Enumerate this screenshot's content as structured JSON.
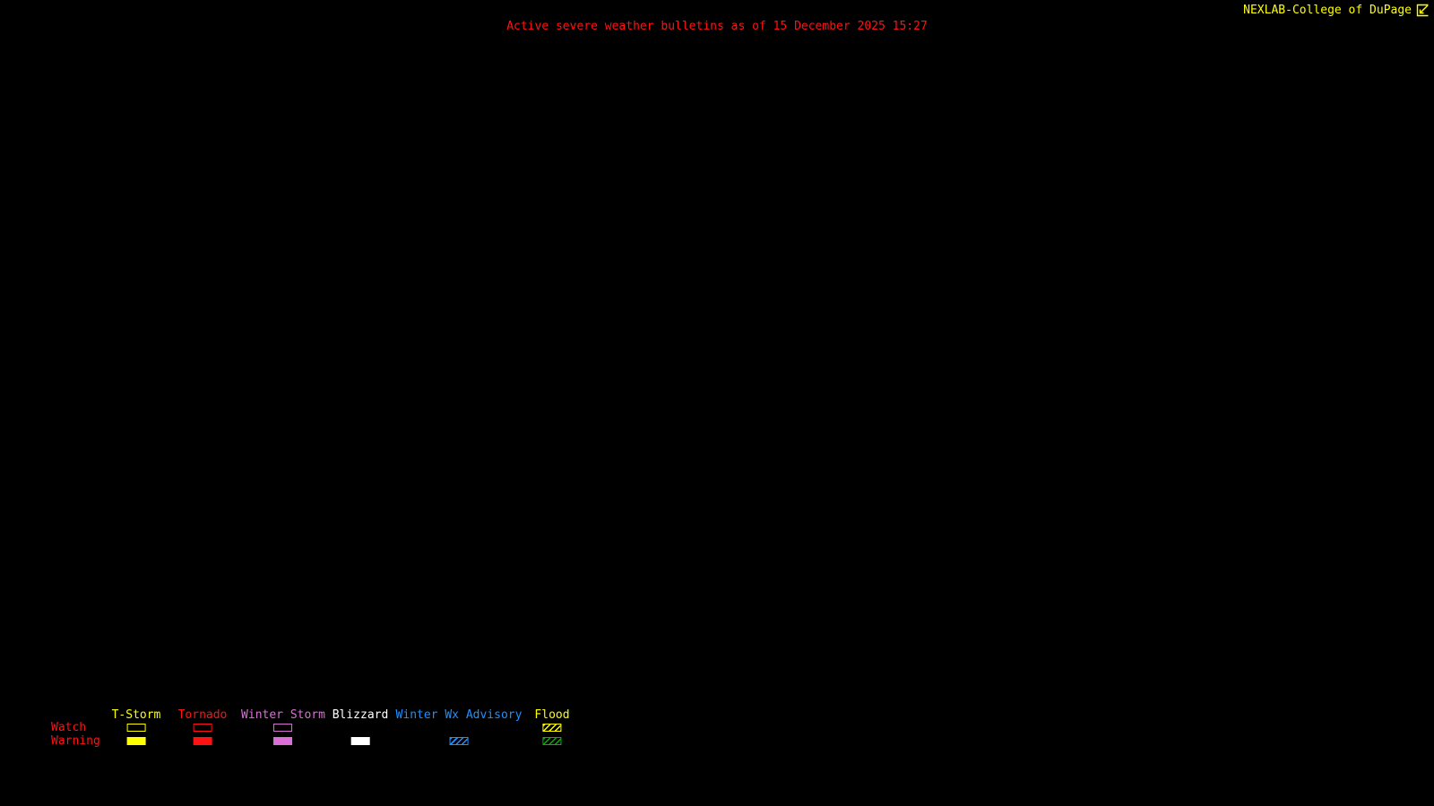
{
  "header": {
    "title": "Active severe weather bulletins as of 15 December 2025 15:27",
    "title_color": "#ff1212",
    "brand": "NEXLAB-College of DuPage",
    "brand_color": "#ffff00",
    "logo_icon": "nexlab-box-bolt-icon"
  },
  "map": {
    "background_color": "#000000",
    "active_bulletin_shapes": []
  },
  "legend": {
    "row_label_color": "#ff1212",
    "rows": [
      {
        "label": "Watch"
      },
      {
        "label": "Warning"
      }
    ],
    "columns": [
      {
        "label": "T-Storm",
        "label_color": "#ffff00",
        "watch": {
          "style": "outline",
          "color": "#ffff00"
        },
        "warning": {
          "style": "fill",
          "color": "#ffff00"
        }
      },
      {
        "label": "Tornado",
        "label_color": "#ff1212",
        "watch": {
          "style": "outline",
          "color": "#ff1212"
        },
        "warning": {
          "style": "fill",
          "color": "#ff1212"
        }
      },
      {
        "label": "Winter Storm",
        "label_color": "#da70d6",
        "watch": {
          "style": "outline",
          "color": "#da70d6"
        },
        "warning": {
          "style": "fill",
          "color": "#da70d6"
        }
      },
      {
        "label": "Blizzard",
        "label_color": "#ffffff",
        "watch": {
          "style": "none",
          "color": "#ffffff"
        },
        "warning": {
          "style": "fill",
          "color": "#ffffff"
        }
      },
      {
        "label": "Winter Wx Advisory",
        "label_color": "#1e90ff",
        "watch": {
          "style": "none",
          "color": "#1e90ff"
        },
        "warning": {
          "style": "hatch",
          "color": "#1e90ff"
        }
      },
      {
        "label": "Flood",
        "label_color": "#ffff00",
        "watch": {
          "style": "hatch",
          "color": "#ffff00"
        },
        "warning": {
          "style": "hatch",
          "color": "#00b400"
        }
      }
    ]
  }
}
